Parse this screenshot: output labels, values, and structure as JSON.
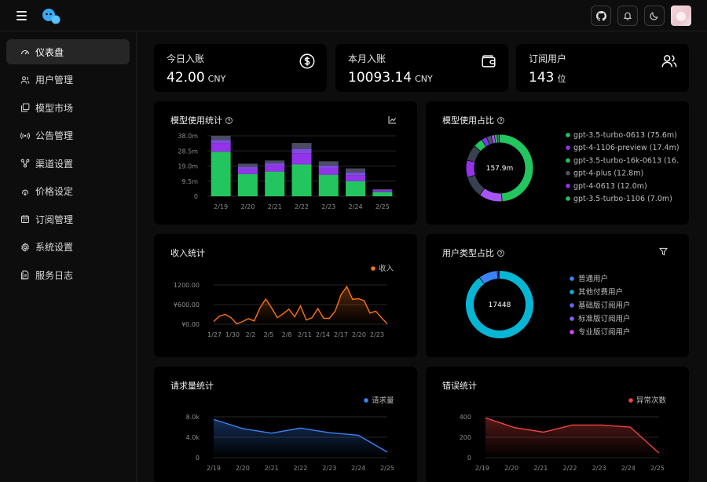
{
  "header": {
    "icons": [
      "menu-icon",
      "logo-icon",
      "github-icon",
      "bell-icon",
      "moon-icon",
      "avatar"
    ]
  },
  "sidebar": {
    "items": [
      {
        "label": "仪表盘",
        "icon": "gauge-icon",
        "active": true
      },
      {
        "label": "用户管理",
        "icon": "users-icon"
      },
      {
        "label": "模型市场",
        "icon": "layers-icon"
      },
      {
        "label": "公告管理",
        "icon": "broadcast-icon"
      },
      {
        "label": "渠道设置",
        "icon": "network-icon"
      },
      {
        "label": "价格设定",
        "icon": "price-icon"
      },
      {
        "label": "订阅管理",
        "icon": "calendar-icon"
      },
      {
        "label": "系统设置",
        "icon": "gear-icon"
      },
      {
        "label": "服务日志",
        "icon": "log-icon"
      }
    ]
  },
  "stats": [
    {
      "label": "今日入账",
      "value": "42.00",
      "unit": "CNY",
      "icon": "dollar-circle-icon"
    },
    {
      "label": "本月入账",
      "value": "10093.14",
      "unit": "CNY",
      "icon": "wallet-icon"
    },
    {
      "label": "订阅用户",
      "value": "143",
      "unit": "位",
      "icon": "users-icon"
    }
  ],
  "cards": {
    "model_usage_title": "模型使用统计",
    "model_share_title": "模型使用占比",
    "income_title": "收入统计",
    "user_type_title": "用户类型占比",
    "requests_title": "请求量统计",
    "errors_title": "错误统计"
  },
  "chart_data": [
    {
      "type": "bar",
      "stacked": true,
      "categories": [
        "2/19",
        "2/20",
        "2/21",
        "2/22",
        "2/23",
        "2/24",
        "2/25"
      ],
      "yticks": [
        "0",
        "9.5m",
        "19.0m",
        "28.5m",
        "38.0m"
      ],
      "ylim": [
        0,
        38.0
      ],
      "series": [
        {
          "color": "#22c55e",
          "values": [
            28.0,
            14.0,
            15.5,
            20.0,
            13.5,
            9.5,
            2.6
          ]
        },
        {
          "color": "#9333ea",
          "values": [
            5.5,
            3.0,
            4.0,
            7.0,
            4.0,
            3.5,
            0.8
          ]
        },
        {
          "color": "#7c4ddb",
          "values": [
            1.8,
            1.5,
            1.2,
            2.8,
            1.8,
            2.0,
            0.5
          ]
        },
        {
          "color": "#4b4b63",
          "values": [
            2.7,
            2.0,
            1.8,
            3.7,
            2.7,
            2.5,
            0.6
          ]
        }
      ],
      "grid": true
    },
    {
      "type": "pie",
      "donut": true,
      "center_label": "157.9m",
      "legend": [
        {
          "name": "gpt-3.5-turbo-0613 (75.6m)",
          "color": "#22c55e",
          "value": 75.6
        },
        {
          "name": "gpt-4-1106-preview (17.4m)",
          "color": "#9333ea",
          "value": 17.4
        },
        {
          "name": "gpt-3.5-turbo-16k-0613 (16.",
          "color": "#22c55e",
          "value": 16.0
        },
        {
          "name": "gpt-4-plus (12.8m)",
          "color": "#4b5563",
          "value": 12.8
        },
        {
          "name": "gpt-4-0613 (12.0m)",
          "color": "#9333ea",
          "value": 12.0
        },
        {
          "name": "gpt-3.5-turbo-1106 (7.0m)",
          "color": "#22c55e",
          "value": 7.0
        }
      ],
      "slices": [
        {
          "color": "#22c55e",
          "value": 75.6
        },
        {
          "color": "#a855f7",
          "value": 17.4
        },
        {
          "color": "#374151",
          "value": 16.0
        },
        {
          "color": "#9333ea",
          "value": 12.8
        },
        {
          "color": "#374151",
          "value": 12.0
        },
        {
          "color": "#22c55e",
          "value": 7.0
        },
        {
          "color": "#7c3aed",
          "value": 4.0
        },
        {
          "color": "#4b5563",
          "value": 3.5
        },
        {
          "color": "#a855f7",
          "value": 2.5
        },
        {
          "color": "#22c55e",
          "value": 2.0
        },
        {
          "color": "#6b7280",
          "value": 1.6
        }
      ]
    },
    {
      "type": "area",
      "legend": "收入",
      "color": "#f97316",
      "xticks": [
        "1/27",
        "1/30",
        "2/2",
        "2/5",
        "2/8",
        "2/11",
        "2/14",
        "2/17",
        "2/20",
        "2/23"
      ],
      "yticks": [
        "¥0.00",
        "¥600.00",
        "1200.00"
      ],
      "ylim": [
        0,
        1560
      ],
      "values": [
        80,
        250,
        300,
        200,
        10,
        80,
        170,
        100,
        500,
        770,
        500,
        200,
        320,
        460,
        230,
        560,
        130,
        200,
        480,
        180,
        180,
        400,
        900,
        1150,
        760,
        780,
        720,
        340,
        400,
        200,
        10
      ]
    },
    {
      "type": "pie",
      "donut": true,
      "center_label": "17448",
      "legend": [
        {
          "name": "普通用户",
          "color": "#3b82f6"
        },
        {
          "name": "其他付费用户",
          "color": "#06b6d4"
        },
        {
          "name": "基础版订阅用户",
          "color": "#6366f1"
        },
        {
          "name": "标准版订阅用户",
          "color": "#8b5cf6"
        },
        {
          "name": "专业版订阅用户",
          "color": "#d946ef"
        }
      ],
      "slices": [
        {
          "color": "#06b6d4",
          "value": 90
        },
        {
          "color": "#3b82f6",
          "value": 9
        },
        {
          "color": "#8b5cf6",
          "value": 0.6
        },
        {
          "color": "#d946ef",
          "value": 0.4
        }
      ]
    },
    {
      "type": "area",
      "legend": "请求量",
      "color": "#3b82f6",
      "xticks": [
        "2/19",
        "2/20",
        "2/21",
        "2/22",
        "2/23",
        "2/24",
        "2/25"
      ],
      "yticks": [
        "0",
        "4.0k",
        "8.0k"
      ],
      "ylim": [
        0,
        8000
      ],
      "values": [
        7500,
        5700,
        4800,
        5800,
        4900,
        4400,
        1100
      ]
    },
    {
      "type": "area",
      "legend": "异常次数",
      "color": "#ef4444",
      "xticks": [
        "2/19",
        "2/20",
        "2/21",
        "2/22",
        "2/23",
        "2/24",
        "2/25"
      ],
      "yticks": [
        "0",
        "200",
        "400"
      ],
      "ylim": [
        0,
        400
      ],
      "values": [
        390,
        295,
        250,
        320,
        320,
        300,
        45
      ]
    }
  ]
}
